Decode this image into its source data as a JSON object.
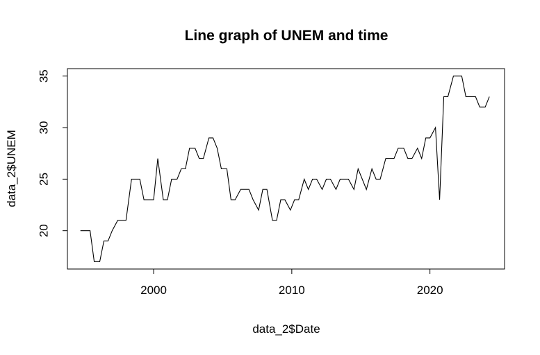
{
  "chart_data": {
    "type": "line",
    "title": "Line graph of UNEM and time",
    "xlabel": "data_2$Date",
    "ylabel": "data_2$UNEM",
    "xlim": [
      1993.76,
      2025.4
    ],
    "ylim": [
      16.28,
      35.72
    ],
    "xticks": [
      2000,
      2010,
      2020
    ],
    "yticks": [
      20,
      25,
      30,
      35
    ],
    "grid": false,
    "legend": "none",
    "line_color": "#000000",
    "series": [
      {
        "x": [
          1994.7,
          1995.1,
          1995.4,
          1995.7,
          1996.1,
          1996.4,
          1996.7,
          1997.0,
          1997.4,
          1997.7,
          1998.0,
          1998.4,
          1998.7,
          1999.0,
          1999.3,
          1999.7,
          2000.0,
          2000.3,
          2000.7,
          2001.0,
          2001.3,
          2001.7,
          2002.0,
          2002.3,
          2002.6,
          2003.0,
          2003.3,
          2003.6,
          2004.0,
          2004.3,
          2004.6,
          2004.9,
          2005.3,
          2005.6,
          2005.9,
          2006.3,
          2006.6,
          2006.9,
          2007.2,
          2007.6,
          2007.9,
          2008.2,
          2008.6,
          2008.9,
          2009.2,
          2009.5,
          2009.9,
          2010.2,
          2010.5,
          2010.9,
          2011.2,
          2011.5,
          2011.8,
          2012.2,
          2012.5,
          2012.8,
          2013.2,
          2013.5,
          2013.8,
          2014.1,
          2014.5,
          2014.8,
          2015.1,
          2015.4,
          2015.8,
          2016.1,
          2016.4,
          2016.8,
          2017.1,
          2017.4,
          2017.7,
          2018.1,
          2018.4,
          2018.7,
          2019.1,
          2019.4,
          2019.7,
          2020.0,
          2020.4,
          2020.7,
          2021.0,
          2021.3,
          2021.7,
          2022.0,
          2022.3,
          2022.6,
          2023.0,
          2023.3,
          2023.6,
          2024.0,
          2024.3
        ],
        "y": [
          20,
          20,
          20,
          17,
          17,
          19,
          19,
          20,
          21,
          21,
          21,
          25,
          25,
          25,
          23,
          23,
          23,
          27,
          23,
          23,
          25,
          25,
          26,
          26,
          28,
          28,
          27,
          27,
          29,
          29,
          28,
          26,
          26,
          23,
          23,
          24,
          24,
          24,
          23,
          22,
          24,
          24,
          21,
          21,
          23,
          23,
          22,
          23,
          23,
          25,
          24,
          25,
          25,
          24,
          25,
          25,
          24,
          25,
          25,
          25,
          24,
          26,
          25,
          24,
          26,
          25,
          25,
          27,
          27,
          27,
          28,
          28,
          27,
          27,
          28,
          27,
          29,
          29,
          30,
          23,
          33,
          33,
          35,
          35,
          35,
          33,
          33,
          33,
          32,
          32,
          33
        ]
      }
    ]
  }
}
